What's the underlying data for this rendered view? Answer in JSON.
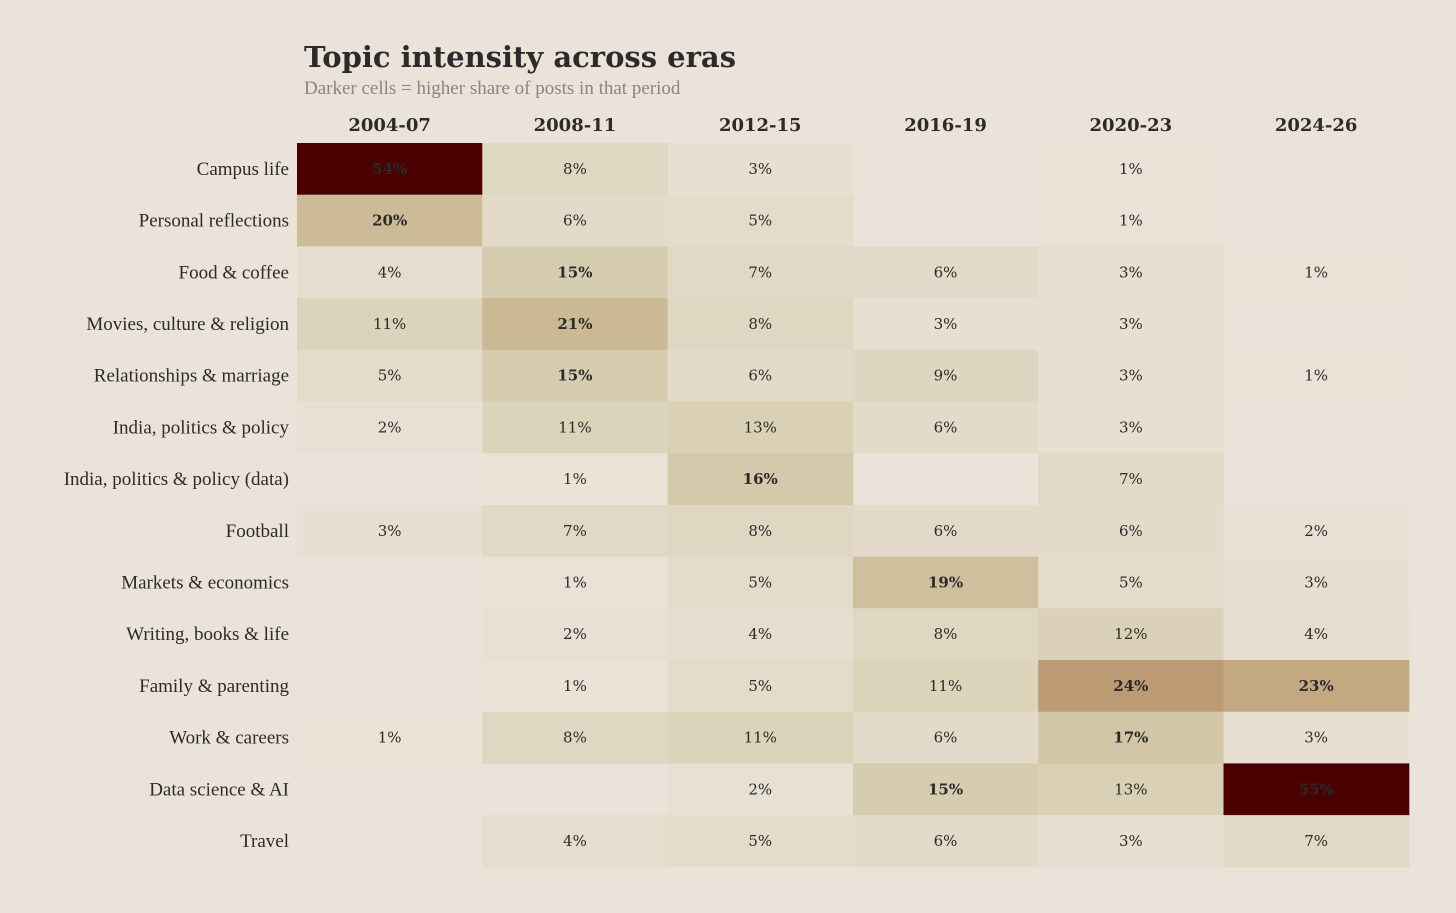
{
  "chart_data": {
    "type": "heatmap",
    "title": "Topic intensity across eras",
    "subtitle": "Darker cells = higher share of posts in that period",
    "columns": [
      "2004-07",
      "2008-11",
      "2012-15",
      "2016-19",
      "2020-23",
      "2024-26"
    ],
    "rows": [
      "Campus life",
      "Personal reflections",
      "Food & coffee",
      "Movies, culture & religion",
      "Relationships & marriage",
      "India, politics & policy",
      "India, politics & policy (data)",
      "Football",
      "Markets & economics",
      "Writing, books & life",
      "Family & parenting",
      "Work & careers",
      "Data science & AI",
      "Travel"
    ],
    "values": [
      [
        54,
        8,
        3,
        null,
        1,
        null
      ],
      [
        20,
        6,
        5,
        null,
        1,
        null
      ],
      [
        4,
        15,
        7,
        6,
        3,
        1
      ],
      [
        11,
        21,
        8,
        3,
        3,
        null
      ],
      [
        5,
        15,
        6,
        9,
        3,
        1
      ],
      [
        2,
        11,
        13,
        6,
        3,
        null
      ],
      [
        null,
        1,
        16,
        null,
        7,
        null
      ],
      [
        3,
        7,
        8,
        6,
        6,
        2
      ],
      [
        null,
        1,
        5,
        19,
        5,
        3
      ],
      [
        null,
        2,
        4,
        8,
        12,
        4
      ],
      [
        null,
        1,
        5,
        11,
        24,
        23
      ],
      [
        1,
        8,
        11,
        6,
        17,
        3
      ],
      [
        null,
        null,
        2,
        15,
        13,
        55
      ],
      [
        null,
        4,
        5,
        6,
        3,
        7
      ]
    ],
    "value_suffix": "%",
    "colors": {
      "background": "#ebe3d9",
      "low": "#ebe3d9",
      "mid1": "#d6cdb0",
      "mid2": "#c9b48f",
      "high": "#4a0000"
    }
  }
}
